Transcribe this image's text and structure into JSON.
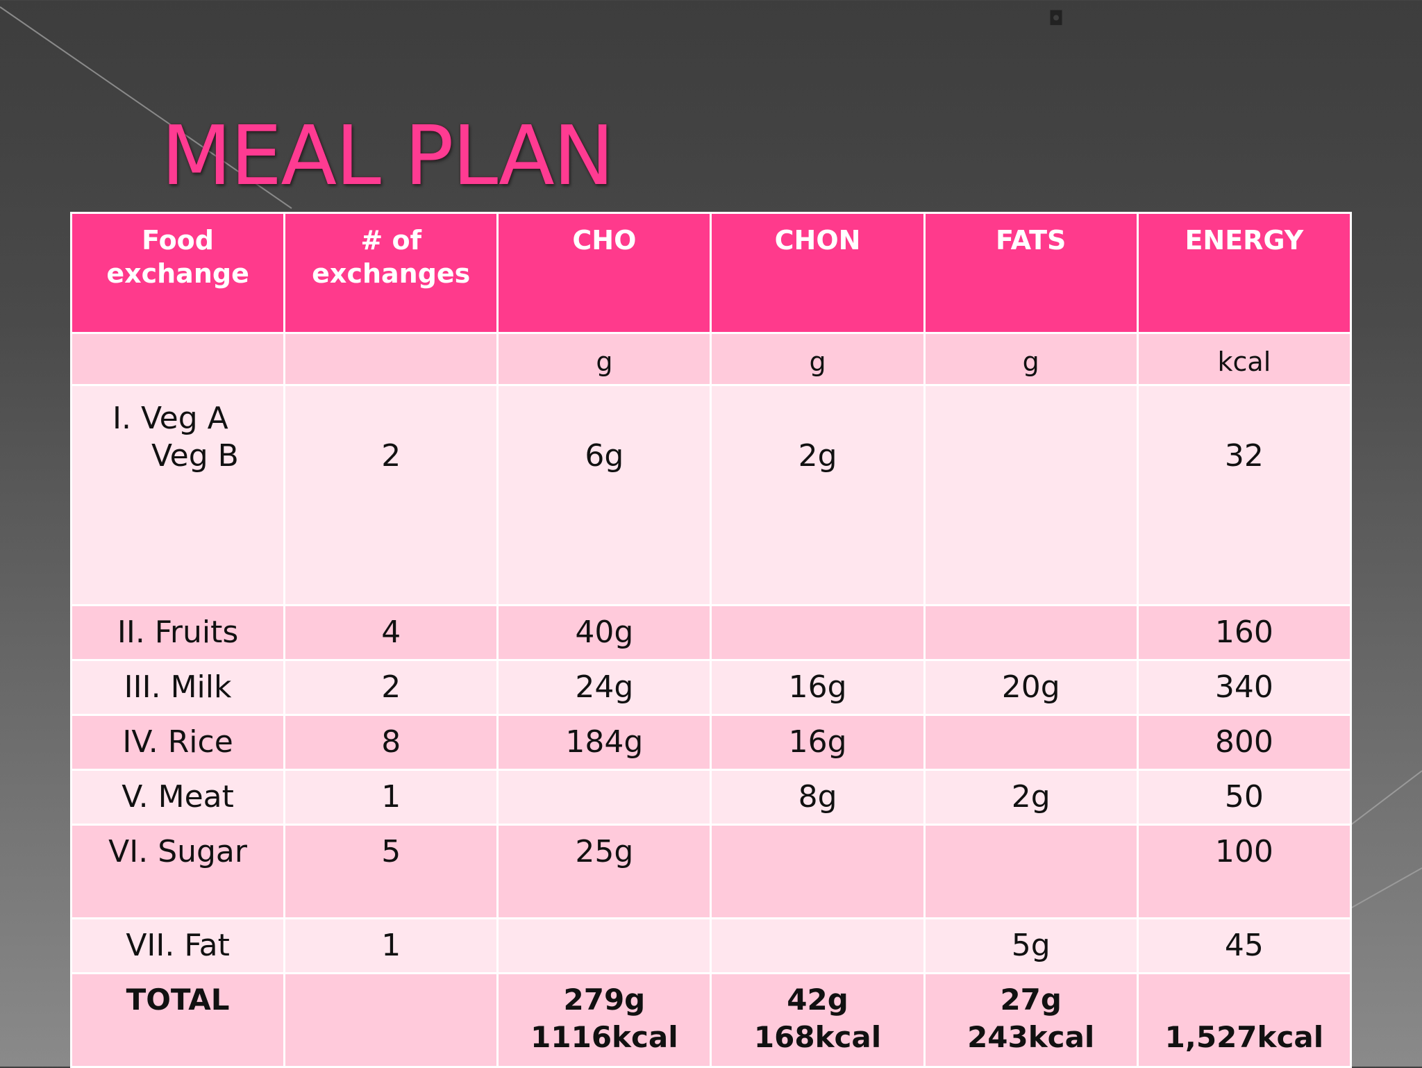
{
  "title": "MEAL PLAN",
  "colors": {
    "accent": "#ff3a8c",
    "title": "#ff3b92",
    "row_light": "#ffe6ee",
    "row_dark": "#ffcadb"
  },
  "table": {
    "headers": [
      "Food exchange",
      "# of exchanges",
      "CHO",
      "CHON",
      "FATS",
      "ENERGY"
    ],
    "header_lines": {
      "food": [
        "Food",
        "exchange"
      ],
      "exchanges": [
        "# of",
        "exchanges"
      ]
    },
    "units": [
      "",
      "",
      "g",
      "g",
      "g",
      "kcal"
    ],
    "rows": [
      {
        "food_line1": "I.  Veg A",
        "food_line2": "Veg B",
        "exchanges": "2",
        "cho": "6g",
        "chon": "2g",
        "fats": "",
        "energy": "32"
      },
      {
        "food": "II.  Fruits",
        "exchanges": "4",
        "cho": "40g",
        "chon": "",
        "fats": "",
        "energy": "160"
      },
      {
        "food": "III. Milk",
        "exchanges": "2",
        "cho": "24g",
        "chon": "16g",
        "fats": "20g",
        "energy": "340"
      },
      {
        "food": "IV. Rice",
        "exchanges": "8",
        "cho": "184g",
        "chon": "16g",
        "fats": "",
        "energy": "800"
      },
      {
        "food": "V. Meat",
        "exchanges": "1",
        "cho": "",
        "chon": "8g",
        "fats": "2g",
        "energy": "50"
      },
      {
        "food": "VI. Sugar",
        "exchanges": "5",
        "cho": "25g",
        "chon": "",
        "fats": "",
        "energy": "100"
      },
      {
        "food": "VII. Fat",
        "exchanges": "1",
        "cho": "",
        "chon": "",
        "fats": "5g",
        "energy": "45"
      }
    ],
    "total": {
      "label": "TOTAL",
      "exchanges": "",
      "cho_g": "279g",
      "cho_kcal": "1116kcal",
      "chon_g": "42g",
      "chon_kcal": "168kcal",
      "fats_g": "27g",
      "fats_kcal": "243kcal",
      "energy": "1,527kcal"
    }
  }
}
